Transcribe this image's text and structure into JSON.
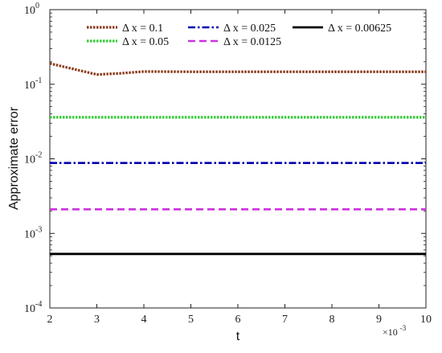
{
  "chart_data": {
    "type": "line",
    "title": "",
    "xlabel": "t",
    "ylabel": "Approximate error",
    "x_multiplier_label": "×10",
    "x_multiplier_exp": "-3",
    "xlim": [
      2,
      10
    ],
    "ylim": [
      0.0001,
      1
    ],
    "y_scale": "log",
    "grid": false,
    "legend_position": "top",
    "x_ticks": [
      "2",
      "3",
      "4",
      "5",
      "6",
      "7",
      "8",
      "9",
      "10"
    ],
    "y_ticks": [
      {
        "base": "10",
        "exp": "-4"
      },
      {
        "base": "10",
        "exp": "-3"
      },
      {
        "base": "10",
        "exp": "-2"
      },
      {
        "base": "10",
        "exp": "-1"
      },
      {
        "base": "10",
        "exp": "0"
      }
    ],
    "series": [
      {
        "name": "Δ x = 0.1",
        "color": "#8b3a1a",
        "style": "dotted",
        "x": [
          2,
          2.5,
          3,
          3.5,
          4,
          5,
          6,
          7,
          8,
          9,
          10
        ],
        "y": [
          0.19,
          0.16,
          0.135,
          0.14,
          0.148,
          0.147,
          0.147,
          0.147,
          0.147,
          0.147,
          0.147
        ]
      },
      {
        "name": "Δ x = 0.05",
        "color": "#33cc33",
        "style": "dotted",
        "x": [
          2,
          10
        ],
        "y": [
          0.036,
          0.036
        ]
      },
      {
        "name": "Δ x = 0.025",
        "color": "#0000b0",
        "style": "dashdot",
        "x": [
          2,
          10
        ],
        "y": [
          0.0088,
          0.0088
        ]
      },
      {
        "name": "Δ x = 0.0125",
        "color": "#cc33dd",
        "style": "dashed",
        "x": [
          2,
          10
        ],
        "y": [
          0.0021,
          0.0021
        ]
      },
      {
        "name": "Δ x = 0.00625",
        "color": "#000000",
        "style": "solid",
        "x": [
          2,
          10
        ],
        "y": [
          0.00053,
          0.00053
        ]
      }
    ]
  }
}
